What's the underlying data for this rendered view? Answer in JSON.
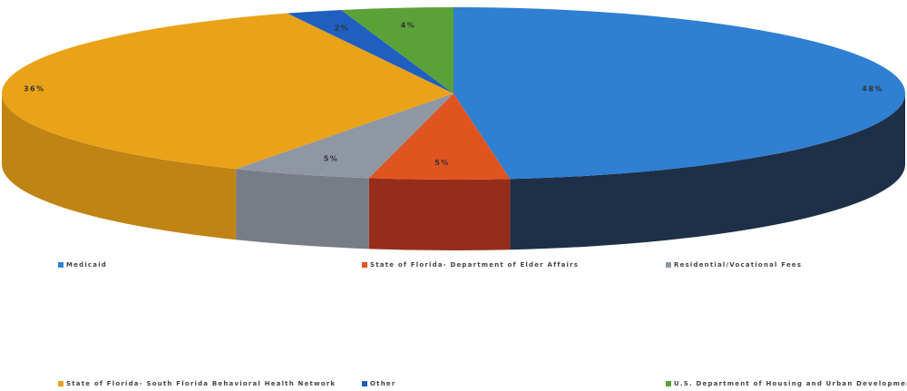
{
  "chart_data": {
    "type": "pie",
    "title": "",
    "three_d": true,
    "categories": [
      "Medicaid",
      "State of Florida- Department of Elder Affairs",
      "Residential/Vocational Fees",
      "State of Florida- South Florida Behavioral Health Network",
      "Other",
      "U.S. Department of Housing and Urban Development"
    ],
    "values": [
      48,
      5,
      5,
      36,
      2,
      4
    ],
    "data_labels": [
      "48%",
      "5%",
      "5%",
      "36%",
      "2%",
      "4%"
    ],
    "colors": [
      "#2f7fd2",
      "#e0541f",
      "#8f96a4",
      "#eaa219",
      "#1f5fbf",
      "#5aa138"
    ],
    "side_colors": [
      "#1d3048",
      "#962d1a",
      "#787c86",
      "#c08414",
      "#1b4488",
      "#3f7a28"
    ],
    "legend_position": "bottom"
  }
}
